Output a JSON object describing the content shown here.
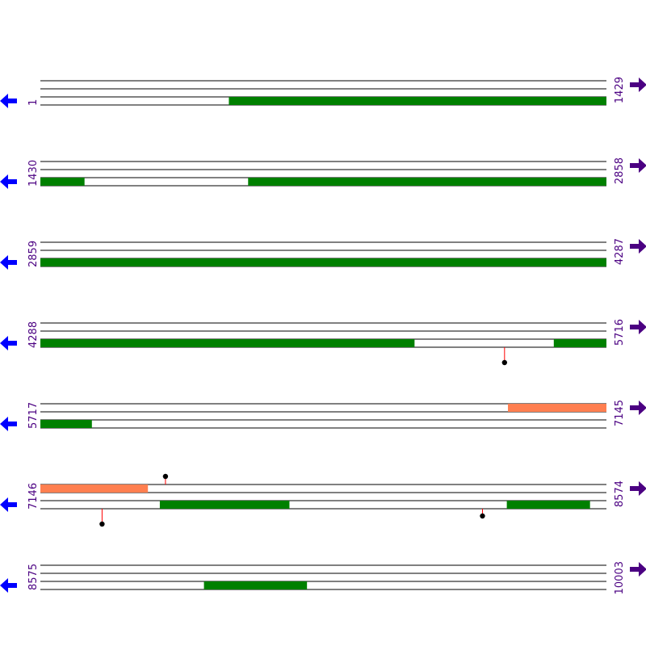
{
  "colors": {
    "background": "#ffffff",
    "track_line": "#000000",
    "orf": "#008000",
    "feature": "#ff7f50",
    "left_arrow": "#0000ff",
    "right_arrow": "#4b0082",
    "label": "#4b0082",
    "site_stem": "#ff0000",
    "site_head": "#000000"
  },
  "icons": {
    "left": "left-arrow-icon",
    "right": "right-arrow-icon"
  },
  "rows": [
    {
      "start": "1",
      "end": "1429",
      "segments": [
        {
          "track": 2,
          "from": 0.333,
          "to": 1.0,
          "kind": "orf"
        }
      ],
      "sites": []
    },
    {
      "start": "1430",
      "end": "2858",
      "segments": [
        {
          "track": 2,
          "from": 0.0,
          "to": 0.078,
          "kind": "orf"
        },
        {
          "track": 2,
          "from": 0.367,
          "to": 1.0,
          "kind": "orf"
        }
      ],
      "sites": []
    },
    {
      "start": "2859",
      "end": "4287",
      "segments": [
        {
          "track": 2,
          "from": 0.0,
          "to": 1.0,
          "kind": "orf"
        }
      ],
      "sites": []
    },
    {
      "start": "4288",
      "end": "5716",
      "segments": [
        {
          "track": 2,
          "from": 0.0,
          "to": 0.661,
          "kind": "orf"
        },
        {
          "track": 2,
          "from": 0.907,
          "to": 1.0,
          "kind": "orf"
        }
      ],
      "sites": [
        {
          "track": 2,
          "at": 0.82,
          "dir": "down"
        }
      ]
    },
    {
      "start": "5717",
      "end": "7145",
      "segments": [
        {
          "track": 0,
          "from": 0.826,
          "to": 1.0,
          "kind": "feature"
        },
        {
          "track": 2,
          "from": 0.0,
          "to": 0.091,
          "kind": "orf"
        }
      ],
      "sites": []
    },
    {
      "start": "7146",
      "end": "8574",
      "segments": [
        {
          "track": 0,
          "from": 0.0,
          "to": 0.19,
          "kind": "feature"
        },
        {
          "track": 2,
          "from": 0.211,
          "to": 0.44,
          "kind": "orf"
        },
        {
          "track": 2,
          "from": 0.824,
          "to": 0.971,
          "kind": "orf"
        }
      ],
      "sites": [
        {
          "track": 0,
          "at": 0.221,
          "dir": "up"
        },
        {
          "track": 2,
          "at": 0.109,
          "dir": "down"
        },
        {
          "track": 2,
          "at": 0.781,
          "dir": "down-short"
        }
      ]
    },
    {
      "start": "8575",
      "end": "10003",
      "segments": [
        {
          "track": 2,
          "from": 0.289,
          "to": 0.471,
          "kind": "orf"
        }
      ],
      "sites": []
    }
  ]
}
